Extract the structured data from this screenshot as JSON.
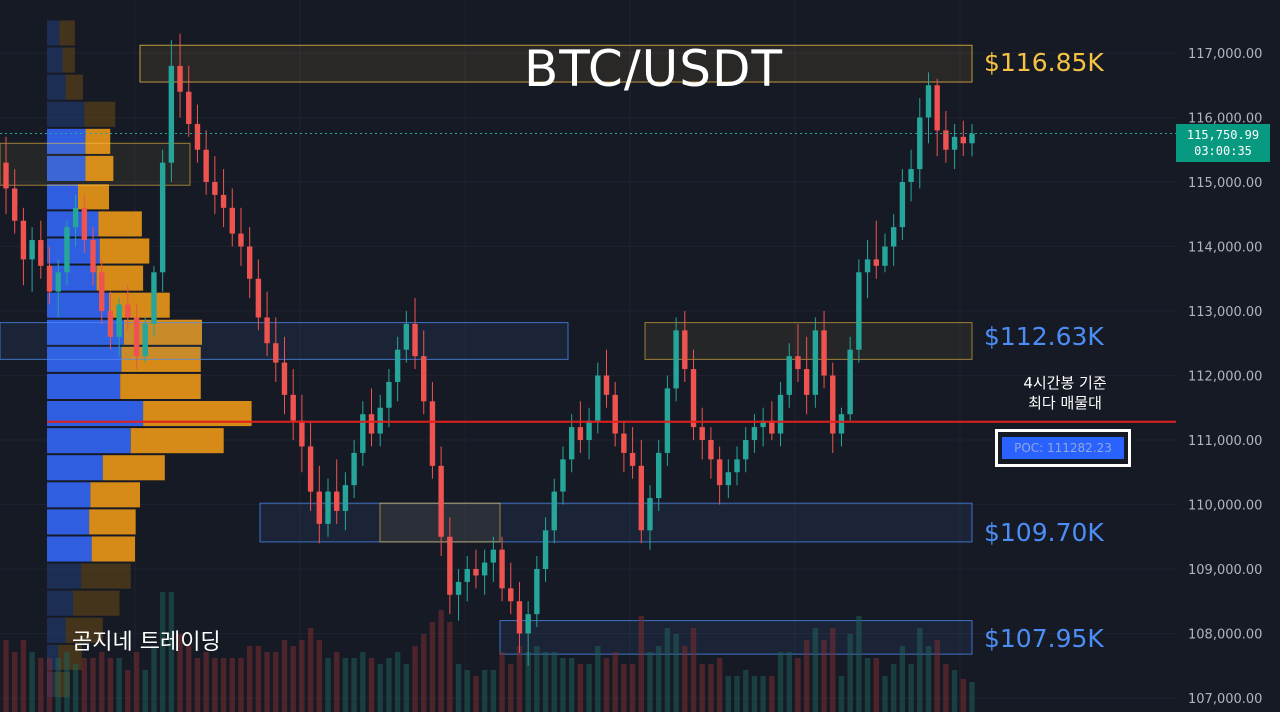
{
  "chart_data": {
    "type": "candlestick",
    "title": "BTC/USDT",
    "watermark": "곰지네 트레이딩",
    "y_ticks": [
      "117,000.00",
      "116,000.00",
      "115,000.00",
      "114,000.00",
      "113,000.00",
      "112,000.00",
      "111,000.00",
      "110,000.00",
      "109,000.00",
      "108,000.00",
      "107,000.00"
    ],
    "y_tick_values": [
      117000,
      116000,
      115000,
      114000,
      113000,
      112000,
      111000,
      110000,
      109000,
      108000,
      107000
    ],
    "ylim": [
      106800,
      117800
    ],
    "current_price": {
      "value": 115750.99,
      "label": "115,750.99",
      "countdown": "03:00:35"
    },
    "poc": {
      "value": 111282.23,
      "label": "POC: 111282.23",
      "note_line1": "4시간봉 기준",
      "note_line2": "최다 매물대"
    },
    "zones": [
      {
        "label": "$116.85K",
        "low": 116550,
        "high": 117120,
        "color": "#f5c242"
      },
      {
        "label": "$112.63K",
        "low": 112250,
        "high": 112820,
        "color": "#4c8df6"
      },
      {
        "label": "$109.70K",
        "low": 109420,
        "high": 110020,
        "color": "#4c8df6"
      },
      {
        "label": "$107.95K",
        "low": 107680,
        "high": 108200,
        "color": "#4c8df6"
      }
    ],
    "volume_profile": {
      "bins_low": [
        107000,
        107420,
        107840,
        108260,
        108680,
        109100,
        109520,
        109940,
        110360,
        110780,
        111200,
        111620,
        112040,
        112460,
        112880,
        113300,
        113720,
        114140,
        114560,
        115000,
        115420,
        115840,
        116260,
        116680,
        117100
      ],
      "buy": [
        12,
        18,
        30,
        42,
        55,
        72,
        68,
        70,
        90,
        135,
        155,
        118,
        120,
        124,
        100,
        80,
        85,
        83,
        50,
        62,
        62,
        60,
        30,
        25,
        20
      ],
      "sell": [
        25,
        38,
        60,
        75,
        80,
        70,
        75,
        80,
        100,
        150,
        175,
        130,
        128,
        126,
        98,
        75,
        80,
        70,
        50,
        45,
        40,
        50,
        28,
        20,
        25
      ]
    },
    "candles": [
      [
        115300,
        115700,
        114500,
        114900
      ],
      [
        114900,
        115200,
        114200,
        114400
      ],
      [
        114400,
        114600,
        113400,
        113800
      ],
      [
        113800,
        114300,
        113300,
        114100
      ],
      [
        114100,
        114400,
        113500,
        113700
      ],
      [
        113700,
        114000,
        113100,
        113300
      ],
      [
        113300,
        113800,
        112900,
        113600
      ],
      [
        113600,
        114400,
        113400,
        114300
      ],
      [
        114300,
        114800,
        114000,
        114600
      ],
      [
        114600,
        114800,
        113900,
        114100
      ],
      [
        114100,
        114300,
        113400,
        113600
      ],
      [
        113600,
        113800,
        112800,
        113000
      ],
      [
        113000,
        113300,
        112400,
        112600
      ],
      [
        112600,
        113200,
        112300,
        113100
      ],
      [
        113100,
        113400,
        112700,
        112900
      ],
      [
        112900,
        113100,
        112100,
        112300
      ],
      [
        112300,
        112900,
        112200,
        112800
      ],
      [
        112800,
        113700,
        112600,
        113600
      ],
      [
        113600,
        115500,
        113300,
        115300
      ],
      [
        115300,
        117200,
        115000,
        116800
      ],
      [
        116800,
        117300,
        116000,
        116400
      ],
      [
        116400,
        116800,
        115700,
        115900
      ],
      [
        115900,
        116200,
        115300,
        115500
      ],
      [
        115500,
        115800,
        114800,
        115000
      ],
      [
        115000,
        115400,
        114500,
        114800
      ],
      [
        114800,
        115200,
        114300,
        114600
      ],
      [
        114600,
        114900,
        114000,
        114200
      ],
      [
        114200,
        114600,
        113700,
        114000
      ],
      [
        114000,
        114300,
        113200,
        113500
      ],
      [
        113500,
        113800,
        112700,
        112900
      ],
      [
        112900,
        113300,
        112300,
        112500
      ],
      [
        112500,
        112900,
        111900,
        112200
      ],
      [
        112200,
        112600,
        111400,
        111700
      ],
      [
        111700,
        112100,
        111000,
        111300
      ],
      [
        111300,
        111700,
        110500,
        110900
      ],
      [
        110900,
        111300,
        109900,
        110200
      ],
      [
        110200,
        110600,
        109400,
        109700
      ],
      [
        109700,
        110400,
        109500,
        110200
      ],
      [
        110200,
        110700,
        109700,
        109900
      ],
      [
        109900,
        110500,
        109600,
        110300
      ],
      [
        110300,
        111000,
        110100,
        110800
      ],
      [
        110800,
        111600,
        110600,
        111400
      ],
      [
        111400,
        111800,
        110900,
        111100
      ],
      [
        111100,
        111700,
        110900,
        111500
      ],
      [
        111500,
        112100,
        111200,
        111900
      ],
      [
        111900,
        112600,
        111600,
        112400
      ],
      [
        112400,
        113000,
        112200,
        112800
      ],
      [
        112800,
        113200,
        112100,
        112300
      ],
      [
        112300,
        112700,
        111400,
        111600
      ],
      [
        111600,
        111900,
        110400,
        110600
      ],
      [
        110600,
        110900,
        109200,
        109500
      ],
      [
        109500,
        109800,
        108300,
        108600
      ],
      [
        108600,
        109000,
        108200,
        108800
      ],
      [
        108800,
        109200,
        108500,
        109000
      ],
      [
        109000,
        109300,
        108700,
        108900
      ],
      [
        108900,
        109300,
        108600,
        109100
      ],
      [
        109100,
        109500,
        108800,
        109300
      ],
      [
        109300,
        109500,
        108500,
        108700
      ],
      [
        108700,
        109100,
        108300,
        108500
      ],
      [
        108500,
        108800,
        107700,
        108000
      ],
      [
        108000,
        108500,
        107500,
        108300
      ],
      [
        108300,
        109200,
        108100,
        109000
      ],
      [
        109000,
        109800,
        108800,
        109600
      ],
      [
        109600,
        110400,
        109400,
        110200
      ],
      [
        110200,
        110900,
        110000,
        110700
      ],
      [
        110700,
        111400,
        110500,
        111200
      ],
      [
        111200,
        111600,
        110800,
        111000
      ],
      [
        111000,
        111500,
        110700,
        111300
      ],
      [
        111300,
        112200,
        111100,
        112000
      ],
      [
        112000,
        112400,
        111500,
        111700
      ],
      [
        111700,
        111900,
        110900,
        111100
      ],
      [
        111100,
        111300,
        110500,
        110800
      ],
      [
        110800,
        111200,
        110400,
        110600
      ],
      [
        110600,
        111000,
        109400,
        109600
      ],
      [
        109600,
        110300,
        109300,
        110100
      ],
      [
        110100,
        111000,
        109900,
        110800
      ],
      [
        110800,
        112000,
        110600,
        111800
      ],
      [
        111800,
        112900,
        111600,
        112700
      ],
      [
        112700,
        113000,
        111900,
        112100
      ],
      [
        112100,
        112400,
        111000,
        111200
      ],
      [
        111200,
        111500,
        110700,
        111000
      ],
      [
        111000,
        111200,
        110400,
        110700
      ],
      [
        110700,
        110900,
        110000,
        110300
      ],
      [
        110300,
        110700,
        110100,
        110500
      ],
      [
        110500,
        110900,
        110300,
        110700
      ],
      [
        110700,
        111200,
        110500,
        111000
      ],
      [
        111000,
        111400,
        110800,
        111200
      ],
      [
        111200,
        111500,
        110900,
        111300
      ],
      [
        111300,
        111600,
        111000,
        111100
      ],
      [
        111100,
        111900,
        110900,
        111700
      ],
      [
        111700,
        112500,
        111500,
        112300
      ],
      [
        112300,
        112800,
        111900,
        112100
      ],
      [
        112100,
        112600,
        111400,
        111700
      ],
      [
        111700,
        112900,
        111500,
        112700
      ],
      [
        112700,
        113000,
        111800,
        112000
      ],
      [
        112000,
        112200,
        110800,
        111100
      ],
      [
        111100,
        111500,
        110900,
        111400
      ],
      [
        111400,
        112600,
        111300,
        112400
      ],
      [
        112400,
        113800,
        112200,
        113600
      ],
      [
        113600,
        114100,
        113200,
        113800
      ],
      [
        113800,
        114400,
        113500,
        113700
      ],
      [
        113700,
        114200,
        113600,
        114000
      ],
      [
        114000,
        114500,
        113700,
        114300
      ],
      [
        114300,
        115200,
        114100,
        115000
      ],
      [
        115000,
        115500,
        114700,
        115200
      ],
      [
        115200,
        116300,
        114900,
        116000
      ],
      [
        116000,
        116700,
        115600,
        116500
      ],
      [
        116500,
        116600,
        115400,
        115800
      ],
      [
        115800,
        116100,
        115300,
        115500
      ],
      [
        115500,
        115900,
        115200,
        115700
      ],
      [
        115700,
        115950,
        115400,
        115600
      ],
      [
        115600,
        115900,
        115400,
        115750.99
      ]
    ]
  }
}
